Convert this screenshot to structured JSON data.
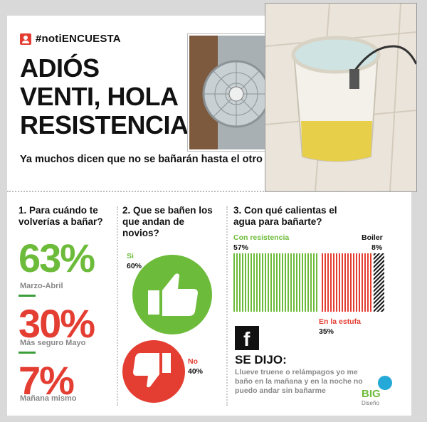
{
  "header": {
    "hashtag": "#notiENCUESTA",
    "title_lines": [
      "ADIÓS",
      "VENTI, HOLA",
      "RESISTENCIA!"
    ],
    "subtitle": "Ya muchos dicen que no se bañarán hasta el otro año"
  },
  "q1": {
    "question": "1. Para cuándo te volverías a bañar?",
    "items": [
      {
        "pct": "63%",
        "label": "Marzo-Abril",
        "color": "#6dbb3a"
      },
      {
        "pct": "30%",
        "label": "Más seguro Mayo",
        "color": "#e43d32"
      },
      {
        "pct": "7%",
        "label": "Mañana mismo",
        "color": "#e43d32"
      }
    ]
  },
  "q2": {
    "question": "2. Que se bañen los que andan de novios?",
    "yes_label": "Si",
    "yes_pct": "60%",
    "no_label": "No",
    "no_pct": "40%"
  },
  "q3": {
    "question": "3. Con qué calientas el agua para bañarte?",
    "options": [
      {
        "label": "Con resistencia",
        "pct": "57%",
        "value": 57,
        "color": "#6dbb3a"
      },
      {
        "label": "En la estufa",
        "pct": "35%",
        "value": 35,
        "color": "#e43d32"
      },
      {
        "label": "Boiler",
        "pct": "8%",
        "value": 8,
        "color": "#111111"
      }
    ]
  },
  "se_dijo": {
    "title": "SE DIJO:",
    "quote": "Llueve truene o relámpagos yo me baño en la mañana y en la noche no puedo andar sin bañarme"
  },
  "branding": {
    "logo": "BIG",
    "logo_sub": "Diseño"
  },
  "icons": {
    "tag": "user-icon",
    "facebook": "facebook-icon",
    "thumb_up": "thumbs-up-icon",
    "thumb_down": "thumbs-down-icon"
  }
}
